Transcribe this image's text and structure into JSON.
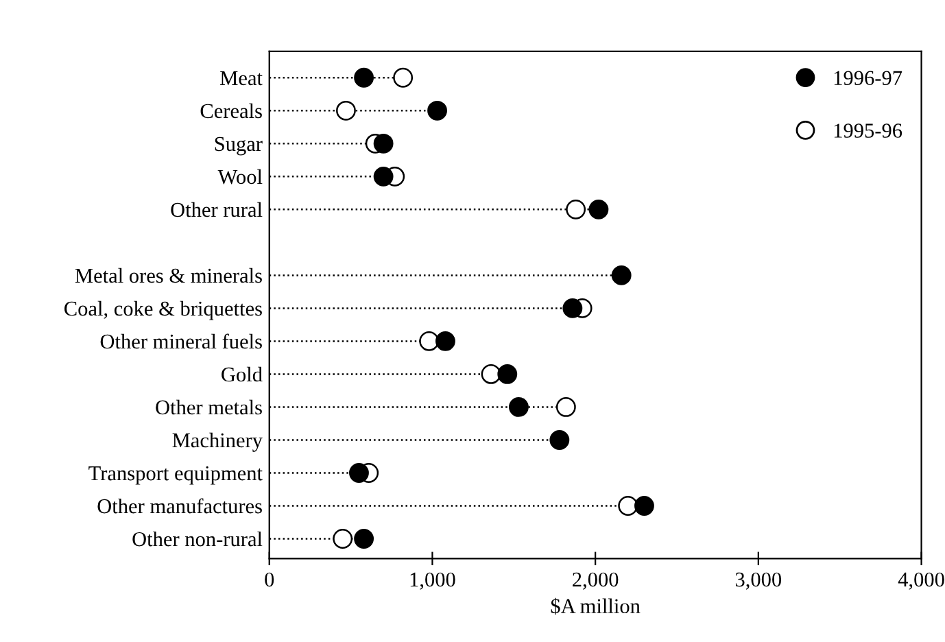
{
  "chart_data": {
    "type": "lollipop",
    "orientation": "horizontal",
    "xlabel": "$A million",
    "categories": [
      "Meat",
      "Cereals",
      "Sugar",
      "Wool",
      "Other rural",
      null,
      "Metal ores & minerals",
      "Coal, coke & briquettes",
      "Other mineral fuels",
      "Gold",
      "Other metals",
      "Machinery",
      "Transport equipment",
      "Other manufactures",
      "Other non-rural"
    ],
    "series": [
      {
        "name": "1996-97",
        "color": "#000000",
        "values": [
          580,
          1030,
          700,
          700,
          2020,
          null,
          2160,
          1860,
          1080,
          1460,
          1530,
          1780,
          550,
          2300,
          580
        ]
      },
      {
        "name": "1995-96",
        "color": "#ffffff",
        "values": [
          820,
          470,
          650,
          770,
          1880,
          null,
          null,
          1920,
          980,
          1360,
          1820,
          null,
          610,
          2200,
          450
        ]
      }
    ],
    "xlim": [
      0,
      4000
    ],
    "xticks": [
      0,
      {
        "value": 1000,
        "label": "1,000"
      },
      {
        "value": 2000,
        "label": "2,000"
      },
      {
        "value": 3000,
        "label": "3,000"
      },
      {
        "value": 4000,
        "label": "4,000"
      }
    ],
    "marker": "circle",
    "line_style": "dotted",
    "legend": "top right",
    "grid": false
  }
}
